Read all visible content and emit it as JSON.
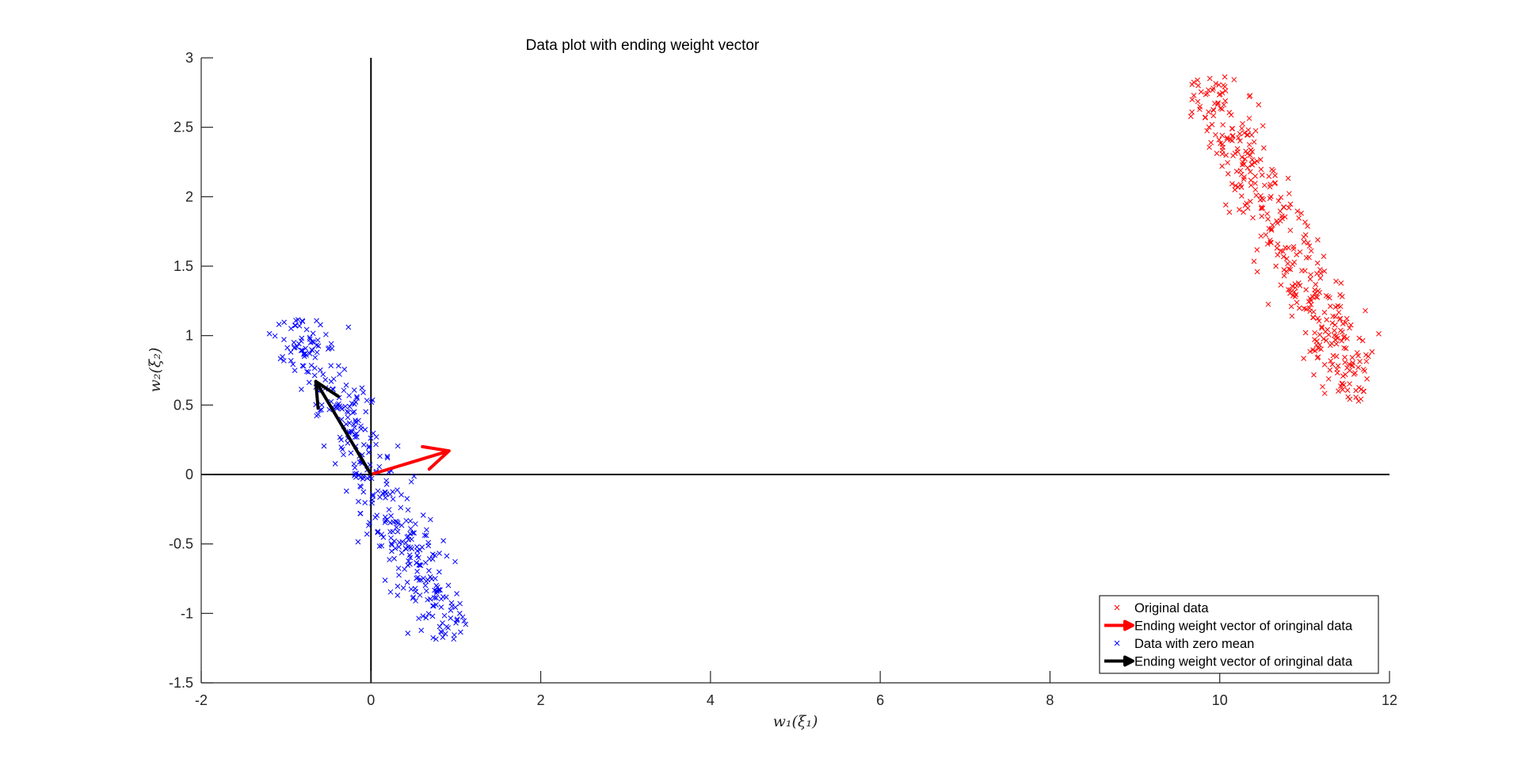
{
  "chart_data": {
    "type": "scatter",
    "title": "Data plot with ending weight vector",
    "xlabel": "w₁(ξ₁)",
    "ylabel": "w₂(ξ₂)",
    "xlim": [
      -2,
      12
    ],
    "ylim": [
      -1.5,
      3
    ],
    "xticks": [
      -2,
      0,
      2,
      4,
      6,
      8,
      10,
      12
    ],
    "yticks": [
      -1.5,
      -1,
      -0.5,
      0,
      0.5,
      1,
      1.5,
      2,
      2.5,
      3
    ],
    "xtick_labels": [
      "-2",
      "0",
      "2",
      "4",
      "6",
      "8",
      "10",
      "12"
    ],
    "ytick_labels": [
      "-1.5",
      "-1",
      "-0.5",
      "0",
      "0.5",
      "1",
      "1.5",
      "2",
      "2.5",
      "3"
    ],
    "grid": false,
    "legend_position": "bottom-right",
    "reference_lines": {
      "x": 0,
      "y": 0,
      "color": "#000000"
    },
    "series": [
      {
        "name": "Original data",
        "kind": "scatter",
        "marker": "x",
        "color": "#ff0000",
        "distribution": {
          "count": 400,
          "center": [
            10.7,
            1.75
          ],
          "direction": [
            0.64,
            -0.77
          ],
          "extent_along": [
            -1.55,
            1.55
          ],
          "spread_perpendicular": 0.15,
          "x_range": [
            9.6,
            11.9
          ],
          "y_range": [
            0.52,
            2.87
          ]
        }
      },
      {
        "name": "Ending weight vector of oringinal data",
        "kind": "arrow",
        "color": "#ff0000",
        "from": [
          0,
          0
        ],
        "to": [
          0.92,
          0.17
        ]
      },
      {
        "name": "Data with zero mean",
        "kind": "scatter",
        "marker": "x",
        "color": "#0000ff",
        "distribution": {
          "count": 400,
          "center": [
            0,
            0
          ],
          "direction": [
            0.64,
            -0.77
          ],
          "extent_along": [
            -1.55,
            1.55
          ],
          "spread_perpendicular": 0.15,
          "x_range": [
            -1.25,
            1.15
          ],
          "y_range": [
            -1.23,
            1.12
          ]
        }
      },
      {
        "name": "Ending weight vector of oringinal data",
        "kind": "arrow",
        "color": "#000000",
        "from": [
          0,
          0
        ],
        "to": [
          -0.65,
          0.67
        ]
      }
    ]
  }
}
